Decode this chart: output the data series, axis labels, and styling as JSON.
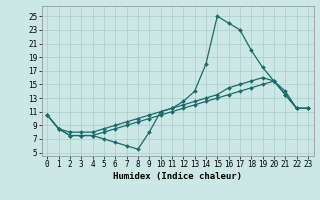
{
  "xlabel": "Humidex (Indice chaleur)",
  "background_color": "#cce8e4",
  "grid_color": "#aacccc",
  "line_color": "#1a6b6b",
  "xlim": [
    -0.5,
    23.5
  ],
  "ylim": [
    4.5,
    26.5
  ],
  "xticks": [
    0,
    1,
    2,
    3,
    4,
    5,
    6,
    7,
    8,
    9,
    10,
    11,
    12,
    13,
    14,
    15,
    16,
    17,
    18,
    19,
    20,
    21,
    22,
    23
  ],
  "yticks": [
    5,
    7,
    9,
    11,
    13,
    15,
    17,
    19,
    21,
    23,
    25
  ],
  "line1_x": [
    0,
    1,
    2,
    3,
    4,
    5,
    6,
    7,
    8,
    9,
    10,
    11,
    12,
    13,
    14,
    15,
    16,
    17,
    18,
    19,
    20,
    21,
    22,
    23
  ],
  "line1_y": [
    10.5,
    8.5,
    7.5,
    7.5,
    7.5,
    7.0,
    6.5,
    6.0,
    5.5,
    8.0,
    11.0,
    11.5,
    12.5,
    14.0,
    18.0,
    25.0,
    24.0,
    23.0,
    20.0,
    17.5,
    15.5,
    14.0,
    11.5,
    11.5
  ],
  "line2_x": [
    0,
    1,
    2,
    3,
    4,
    5,
    6,
    7,
    8,
    9,
    10,
    11,
    12,
    13,
    14,
    15,
    16,
    17,
    18,
    19,
    20,
    21,
    22,
    23
  ],
  "line2_y": [
    10.5,
    8.5,
    8.0,
    8.0,
    8.0,
    8.5,
    9.0,
    9.5,
    10.0,
    10.5,
    11.0,
    11.5,
    12.0,
    12.5,
    13.0,
    13.5,
    14.5,
    15.0,
    15.5,
    16.0,
    15.5,
    13.5,
    11.5,
    11.5
  ],
  "line3_x": [
    0,
    1,
    2,
    3,
    4,
    5,
    6,
    7,
    8,
    9,
    10,
    11,
    12,
    13,
    14,
    15,
    16,
    17,
    18,
    19,
    20,
    21,
    22,
    23
  ],
  "line3_y": [
    10.5,
    8.5,
    7.5,
    7.5,
    7.5,
    8.0,
    8.5,
    9.0,
    9.5,
    10.0,
    10.5,
    11.0,
    11.5,
    12.0,
    12.5,
    13.0,
    13.5,
    14.0,
    14.5,
    15.0,
    15.5,
    13.5,
    11.5,
    11.5
  ],
  "tick_fontsize": 5.5,
  "xlabel_fontsize": 6.5
}
